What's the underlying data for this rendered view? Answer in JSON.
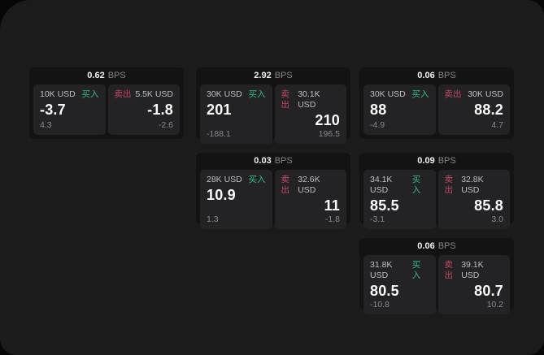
{
  "labels": {
    "bps_unit": "BPS",
    "buy": "买入",
    "sell": "卖出"
  },
  "colors": {
    "buy_green": "#2ebd85",
    "sell_red": "#c94662",
    "surface": "#1b1b1c",
    "card_background": "#131314",
    "panel_background": "#232325"
  },
  "cards": [
    {
      "bps": "0.62",
      "buy": {
        "amount": "10K USD",
        "price": "-3.7",
        "sub": "4.3"
      },
      "sell": {
        "amount": "5.5K USD",
        "price": "-1.8",
        "sub": "-2.6"
      }
    },
    {
      "bps": "2.92",
      "buy": {
        "amount": "30K USD",
        "price": "201",
        "sub": "-188.1"
      },
      "sell": {
        "amount": "30.1K USD",
        "price": "210",
        "sub": "196.5"
      }
    },
    {
      "bps": "0.06",
      "buy": {
        "amount": "30K USD",
        "price": "88",
        "sub": "-4.9"
      },
      "sell": {
        "amount": "30K USD",
        "price": "88.2",
        "sub": "4.7"
      }
    },
    {
      "bps": "0.03",
      "buy": {
        "amount": "28K USD",
        "price": "10.9",
        "sub": "1.3"
      },
      "sell": {
        "amount": "32.6K USD",
        "price": "11",
        "sub": "-1.8"
      }
    },
    {
      "bps": "0.09",
      "buy": {
        "amount": "34.1K USD",
        "price": "85.5",
        "sub": "-3.1"
      },
      "sell": {
        "amount": "32.8K USD",
        "price": "85.8",
        "sub": "3.0"
      }
    },
    {
      "bps": "0.06",
      "buy": {
        "amount": "31.8K USD",
        "price": "80.5",
        "sub": "-10.8"
      },
      "sell": {
        "amount": "39.1K USD",
        "price": "80.7",
        "sub": "10.2"
      }
    }
  ]
}
